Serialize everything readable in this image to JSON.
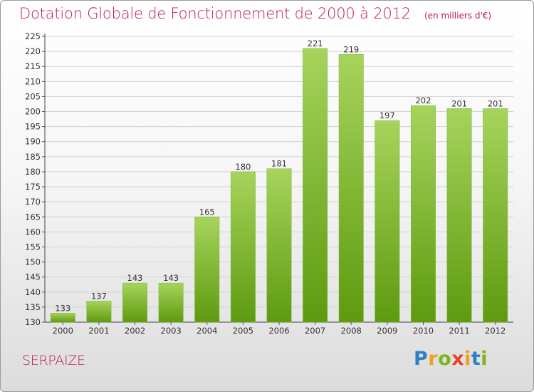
{
  "title": "Dotation Globale de Fonctionnement de 2000 à 2012",
  "unit": "(en milliers d'€)",
  "commune": "SERPAIZE",
  "logo": {
    "letters": [
      "P",
      "r",
      "o",
      "x",
      "i",
      "t",
      "i"
    ],
    "colors": [
      "#2e7fc4",
      "#f0a020",
      "#7cb518",
      "#e8412c",
      "#f0a020",
      "#2e7fc4",
      "#7cb518"
    ]
  },
  "colors": {
    "bar_light": "#a6d45c",
    "bar_dark": "#5e9a0f",
    "title": "#c2185b"
  },
  "chart_data": {
    "type": "bar",
    "title": "Dotation Globale de Fonctionnement de 2000 à 2012",
    "categories": [
      "2000",
      "2001",
      "2002",
      "2003",
      "2004",
      "2005",
      "2006",
      "2007",
      "2008",
      "2009",
      "2010",
      "2011",
      "2012"
    ],
    "values": [
      133,
      137,
      143,
      143,
      165,
      180,
      181,
      221,
      219,
      197,
      202,
      201,
      201
    ],
    "ylim": [
      130,
      225
    ],
    "yticks": [
      130,
      135,
      140,
      145,
      150,
      155,
      160,
      165,
      170,
      175,
      180,
      185,
      190,
      195,
      200,
      205,
      210,
      215,
      220,
      225
    ],
    "grid": true,
    "data_labels": true
  }
}
